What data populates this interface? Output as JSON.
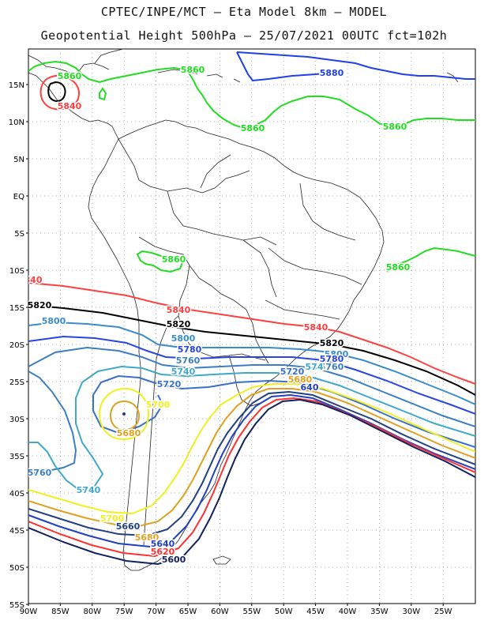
{
  "header": {
    "line1": "CPTEC/INPE/MCT –  Eta Model 8km – MODEL",
    "line2": "Geopotential Height 500hPa – 25/07/2021 00UTC fct=102h"
  },
  "map": {
    "lon_ticks": [
      "90W",
      "85W",
      "80W",
      "75W",
      "70W",
      "65W",
      "60W",
      "55W",
      "50W",
      "45W",
      "40W",
      "35W",
      "30W",
      "25W"
    ],
    "lat_ticks": [
      "15N",
      "10N",
      "5N",
      "EQ",
      "5S",
      "10S",
      "15S",
      "20S",
      "25S",
      "30S",
      "35S",
      "40S",
      "45S",
      "50S",
      "55S"
    ],
    "colors": {
      "5880": "#2040e8",
      "5860": "#22dd22",
      "5840": "#ff4040",
      "5820": "#000000",
      "5800": "#3a8cc8",
      "5780": "#2845e0",
      "5760": "#3c7ec0",
      "5740": "#40a8c8",
      "5720": "#3a70c8",
      "5700": "#f0f020",
      "5680": "#e0a020",
      "5660": "#204080",
      "5640": "#2040c0",
      "5620": "#ff3030",
      "5600": "#102060"
    },
    "labels": [
      {
        "id": "l5880a",
        "text": "5880"
      },
      {
        "id": "l5860a",
        "text": "5860"
      },
      {
        "id": "l5860b",
        "text": "5860"
      },
      {
        "id": "l5860c",
        "text": "5860"
      },
      {
        "id": "l5860d",
        "text": "5860"
      },
      {
        "id": "l5860e",
        "text": "5860"
      },
      {
        "id": "l5860f",
        "text": "5860"
      },
      {
        "id": "l5840a",
        "text": "5840"
      },
      {
        "id": "l5840b",
        "text": "840"
      },
      {
        "id": "l5840c",
        "text": "5840"
      },
      {
        "id": "l5840d",
        "text": "5840"
      },
      {
        "id": "l5820a",
        "text": "5820"
      },
      {
        "id": "l5820b",
        "text": "5820"
      },
      {
        "id": "l5820c",
        "text": "5820"
      },
      {
        "id": "l5800a",
        "text": "5800"
      },
      {
        "id": "l5800b",
        "text": "5800"
      },
      {
        "id": "l5800c",
        "text": "5800"
      },
      {
        "id": "l5780a",
        "text": "5780"
      },
      {
        "id": "l5780b",
        "text": "5780"
      },
      {
        "id": "l5760a",
        "text": "5760"
      },
      {
        "id": "l5760b",
        "text": "5760"
      },
      {
        "id": "l5760c",
        "text": "5760"
      },
      {
        "id": "l5740a",
        "text": "5740"
      },
      {
        "id": "l5740b",
        "text": "5740"
      },
      {
        "id": "l5740c",
        "text": "574"
      },
      {
        "id": "l5720a",
        "text": "5720"
      },
      {
        "id": "l5720b",
        "text": "5720"
      },
      {
        "id": "l5700a",
        "text": "5700"
      },
      {
        "id": "l5700b",
        "text": "5700"
      },
      {
        "id": "l5680a",
        "text": "5680"
      },
      {
        "id": "l5680b",
        "text": "5680"
      },
      {
        "id": "l5660a",
        "text": "5660"
      },
      {
        "id": "l5640a",
        "text": "5640"
      },
      {
        "id": "l5620a",
        "text": "5620"
      },
      {
        "id": "l5600a",
        "text": "5600"
      },
      {
        "id": "l5680c",
        "text": "5680"
      },
      {
        "id": "l5640b",
        "text": "640"
      }
    ]
  }
}
